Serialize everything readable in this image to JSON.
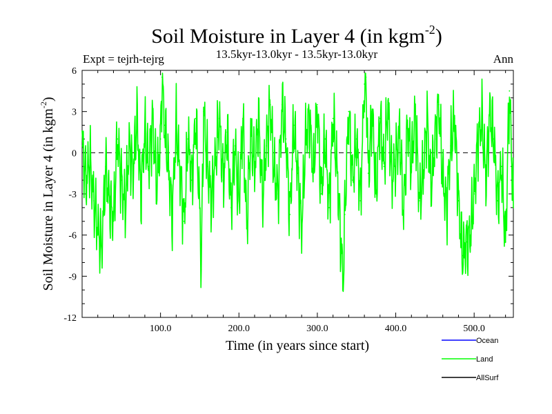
{
  "chart_data": {
    "type": "line",
    "title": "Soil Moisture in Layer 4 (in kgm",
    "title_sup": "-2",
    "title_close": ")",
    "subtitle": "13.5kyr-13.0kyr - 13.5kyr-13.0kyr",
    "experiment": "Expt = tejrh-tejrg",
    "season": "Ann",
    "xlabel": "Time (in years since start)",
    "ylabel": "Soil Moisture in Layer 4 (in kgm",
    "ylabel_sup": "-2",
    "ylabel_close": ")",
    "xlim": [
      0,
      550
    ],
    "ylim": [
      -12,
      6
    ],
    "xticks": [
      100,
      200,
      300,
      400,
      500
    ],
    "xtick_labels": [
      "100.0",
      "200.0",
      "300.0",
      "400.0",
      "500.0"
    ],
    "yticks": [
      6,
      3,
      0,
      -3,
      -6,
      -9,
      -12
    ],
    "ytick_labels": [
      "6",
      "3",
      "0",
      "-3",
      "-6",
      "-9",
      "-12"
    ],
    "zero_line": "dashed",
    "legend": [
      {
        "name": "Ocean",
        "color": "#0000ff"
      },
      {
        "name": "Land",
        "color": "#00ff00"
      },
      {
        "name": "AllSurf",
        "color": "#000000"
      }
    ],
    "series": [
      {
        "name": "Land",
        "color": "#00ff00",
        "x": [
          0,
          5,
          10,
          15,
          20,
          25,
          30,
          35,
          40,
          45,
          50,
          55,
          60,
          65,
          70,
          75,
          80,
          85,
          90,
          95,
          100,
          102,
          105,
          110,
          115,
          120,
          125,
          130,
          135,
          140,
          145,
          150,
          152,
          155,
          160,
          165,
          170,
          175,
          180,
          185,
          190,
          195,
          200,
          205,
          210,
          215,
          220,
          225,
          230,
          235,
          240,
          245,
          250,
          255,
          260,
          265,
          270,
          275,
          280,
          285,
          290,
          295,
          300,
          305,
          310,
          315,
          320,
          325,
          330,
          333,
          335,
          340,
          345,
          350,
          355,
          360,
          362,
          365,
          370,
          375,
          380,
          385,
          390,
          395,
          400,
          405,
          410,
          415,
          420,
          425,
          430,
          435,
          440,
          445,
          450,
          455,
          460,
          465,
          470,
          475,
          480,
          485,
          490,
          495,
          500,
          505,
          510,
          515,
          520,
          525,
          530,
          535,
          540,
          545,
          550
        ],
        "values": [
          0.5,
          -2.0,
          -0.5,
          -3.5,
          -5.5,
          -7.0,
          -1.0,
          -3.5,
          -5.0,
          1.0,
          -2.0,
          -4.0,
          0.5,
          -1.5,
          2.5,
          -3.0,
          1.5,
          -1.0,
          2.5,
          -2.5,
          1.0,
          5.5,
          2.0,
          -1.0,
          -4.5,
          2.0,
          -1.5,
          -5.0,
          1.0,
          -2.0,
          2.5,
          -4.0,
          -8.5,
          3.0,
          -1.0,
          -3.5,
          -0.5,
          2.5,
          -2.0,
          1.5,
          -4.0,
          0.5,
          -3.5,
          2.5,
          -5.5,
          1.5,
          -1.0,
          2.5,
          -3.5,
          0.5,
          3.5,
          -1.5,
          -3.0,
          3.5,
          1.0,
          -4.5,
          2.0,
          -1.5,
          -5.5,
          1.0,
          2.5,
          -1.5,
          3.5,
          -3.0,
          1.0,
          -4.0,
          2.5,
          -1.0,
          -6.5,
          -9.5,
          -4.5,
          3.0,
          -2.0,
          1.0,
          -3.5,
          5.0,
          5.5,
          -1.5,
          3.0,
          -3.0,
          2.5,
          -1.0,
          3.5,
          -2.0,
          -0.5,
          1.5,
          -4.5,
          2.0,
          -1.0,
          3.0,
          -3.5,
          -1.5,
          2.5,
          -2.5,
          1.0,
          3.5,
          -2.0,
          -4.0,
          0.5,
          2.5,
          -3.5,
          -7.5,
          -6.5,
          -6.0,
          -3.0,
          1.0,
          2.5,
          -2.0,
          3.0,
          1.0,
          -3.5,
          -1.0,
          -6.5,
          4.5,
          -4.0
        ]
      }
    ]
  }
}
